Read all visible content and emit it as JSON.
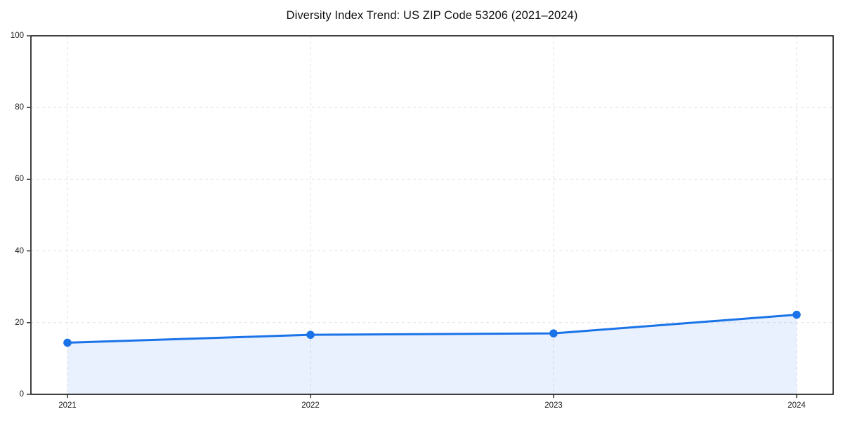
{
  "page": {
    "background_color": "#ffffff"
  },
  "chart_data": {
    "type": "line",
    "title": "Diversity Index Trend: US ZIP Code 53206 (2021–2024)",
    "x": [
      2021,
      2022,
      2023,
      2024
    ],
    "x_tick_labels": [
      "2021",
      "2022",
      "2023",
      "2024"
    ],
    "series": [
      {
        "name": "Diversity Index",
        "values": [
          14.4,
          16.6,
          17.0,
          22.2
        ]
      }
    ],
    "xlabel": "",
    "ylabel": "",
    "ylim": [
      0,
      100
    ],
    "yticks": [
      0,
      20,
      40,
      60,
      80,
      100
    ],
    "grid": true,
    "grid_style": "dashed",
    "legend": false,
    "style": {
      "line_color": "#1a73e8",
      "marker_color": "#1a73e8",
      "fill_color": "rgba(26,115,232,0.10)",
      "grid_color": "#e2e2e2",
      "spine_color": "#000000",
      "tick_text_color": "#1a1a1a",
      "title_color": "#111111"
    }
  }
}
